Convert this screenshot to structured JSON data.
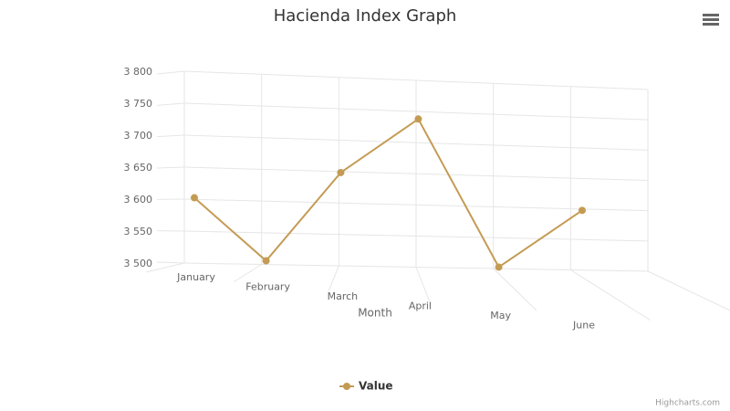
{
  "chart_data": {
    "type": "line",
    "title": "Hacienda Index Graph",
    "x_axis_title": "Month",
    "categories": [
      "January",
      "February",
      "March",
      "April",
      "May",
      "June"
    ],
    "series": [
      {
        "name": "Value",
        "color": "#c49b54",
        "values": [
          3605,
          3505,
          3645,
          3730,
          3495,
          3585
        ]
      }
    ],
    "ylim": [
      3500,
      3800
    ],
    "yticks": [
      {
        "value": 3500,
        "label": "3 500"
      },
      {
        "value": 3550,
        "label": "3 550"
      },
      {
        "value": 3600,
        "label": "3 600"
      },
      {
        "value": 3650,
        "label": "3 650"
      },
      {
        "value": 3700,
        "label": "3 700"
      },
      {
        "value": 3750,
        "label": "3 750"
      },
      {
        "value": 3800,
        "label": "3 800"
      }
    ],
    "grid": true,
    "credits": "Highcharts.com"
  }
}
